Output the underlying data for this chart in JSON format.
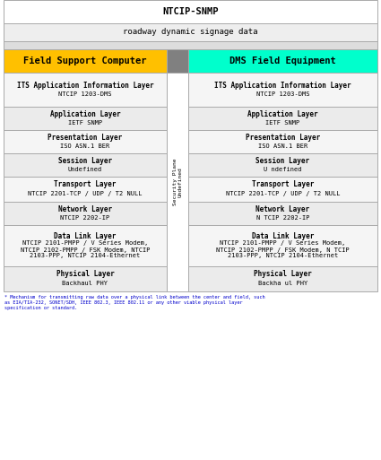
{
  "title": "NTCIP-SNMP",
  "subtitle": "roadway dynamic signage data",
  "left_header": "Field Support Computer",
  "right_header": "DMS Field Equipment",
  "left_header_color": "#FFC000",
  "right_header_color": "#00FFCC",
  "middle_color": "#808080",
  "security_plane_text": "Security Plane\nUndefined",
  "layers": [
    {
      "bold": "ITS Application Information Layer",
      "normal": "NTCIP 1203-DMS",
      "left_normal": "NTCIP 1203-DMS",
      "right_normal": "NTCIP 1203-DMS"
    },
    {
      "bold": "Application Layer",
      "normal": "IETF SNMP",
      "left_normal": "IETF SNMP",
      "right_normal": "IETF SNMP"
    },
    {
      "bold": "Presentation Layer",
      "normal": "ISO ASN.1 BER",
      "left_normal": "ISO ASN.1 BER",
      "right_normal": "ISO ASN.1 BER"
    },
    {
      "bold": "Session Layer",
      "normal": "Undefined",
      "left_normal": "Undefined",
      "right_normal": "U ndefined"
    },
    {
      "bold": "Transport Layer",
      "normal": "NTCIP 2201-TCP / UDP / T2 NULL",
      "left_normal": "NTCIP 2201-TCP / UDP / T2 NULL",
      "right_normal": "NTCIP 2201-TCP / UDP / T2 NULL"
    },
    {
      "bold": "Network Layer",
      "normal": "NTCIP 2202-IP",
      "left_normal": "NTCIP 2202-IP",
      "right_normal": "N TCIP 2202-IP"
    },
    {
      "bold": "Data Link Layer",
      "normal_left": "NTCIP 2101-PMPP / V Series Modem,\nNTCIP 2102-PMPP / FSK Modem, NTCIP\n2103-PPP, NTCIP 2104-Ethernet",
      "normal_right": "NTCIP 2101-PMPP / V Series Modem,\nNTCIP 2102-PMPP / FSK Modem, N TCIP\n2103-PPP, NTCIP 2104-Ethernet"
    },
    {
      "bold": "Physical Layer",
      "normal": "Backhaul PHY",
      "left_normal": "Backhaul PHY",
      "right_normal": "Backha ul PHY"
    }
  ],
  "footnote": "* Mechanism for transmitting raw data over a physical link between the center and field, such\nas EIA/TIA-232, SONET/SDH, IEEE 802.3, IEEE 802.11 or any other viable physical layer\nspecification or standard.",
  "bg_color": "#FFFFFF",
  "border_color": "#AAAAAA",
  "text_color": "#000000",
  "footnote_color": "#0000CC",
  "cell_bg_even": "#F5F5F5",
  "cell_bg_odd": "#EBEBEB",
  "title_bg": "#FFFFFF",
  "subtitle_bg": "#EEEEEE",
  "gap_bg": "#DDDDDD",
  "fig_w": 4.25,
  "fig_h": 5.13,
  "dpi": 100
}
